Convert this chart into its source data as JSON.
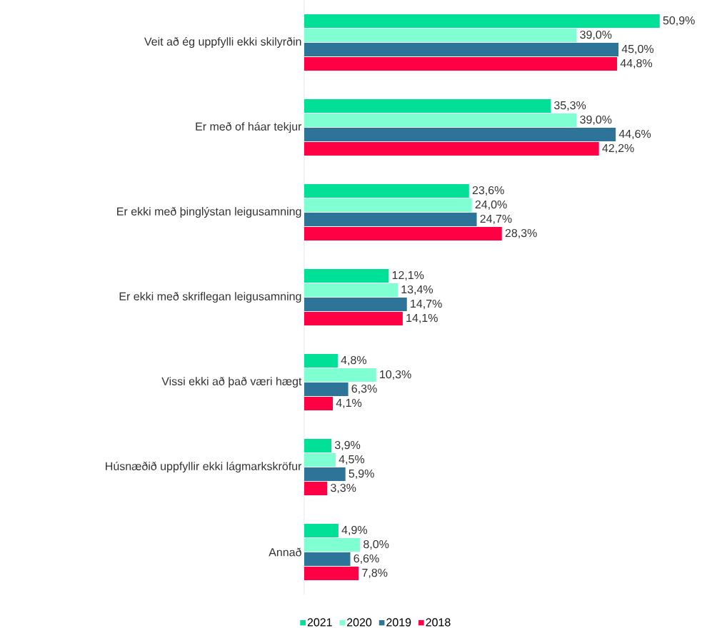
{
  "chart_data": {
    "type": "bar",
    "orientation": "horizontal",
    "legend": "bottom",
    "categories": [
      "Veit að ég uppfylli ekki skilyrðin",
      "Er með of háar tekjur",
      "Er ekki með þinglýstan leigusamning",
      "Er ekki með skriflegan leigusamning",
      "Vissi ekki að það væri hægt",
      "Húsnæðið uppfyllir ekki lágmarkskröfur",
      "Annað"
    ],
    "series": [
      {
        "name": "2021",
        "color": "#00e096",
        "values": [
          50.9,
          35.3,
          23.6,
          12.1,
          4.8,
          3.9,
          4.9
        ],
        "value_labels": [
          "50,9%",
          "35,3%",
          "23,6%",
          "12,1%",
          "4,8%",
          "3,9%",
          "4,9%"
        ]
      },
      {
        "name": "2020",
        "color": "#80ffd2",
        "values": [
          39.0,
          39.0,
          24.0,
          13.4,
          10.3,
          4.5,
          8.0
        ],
        "value_labels": [
          "39,0%",
          "39,0%",
          "24,0%",
          "13,4%",
          "10,3%",
          "4,5%",
          "8,0%"
        ]
      },
      {
        "name": "2019",
        "color": "#2e7398",
        "values": [
          45.0,
          44.6,
          24.7,
          14.7,
          6.3,
          5.9,
          6.6
        ],
        "value_labels": [
          "45,0%",
          "44,6%",
          "24,7%",
          "14,7%",
          "6,3%",
          "5,9%",
          "6,6%"
        ]
      },
      {
        "name": "2018",
        "color": "#ff0044",
        "values": [
          44.8,
          42.2,
          28.3,
          14.1,
          4.1,
          3.3,
          7.8
        ],
        "value_labels": [
          "44,8%",
          "42,2%",
          "28,3%",
          "14,1%",
          "4,1%",
          "3,3%",
          "7,8%"
        ]
      }
    ]
  }
}
